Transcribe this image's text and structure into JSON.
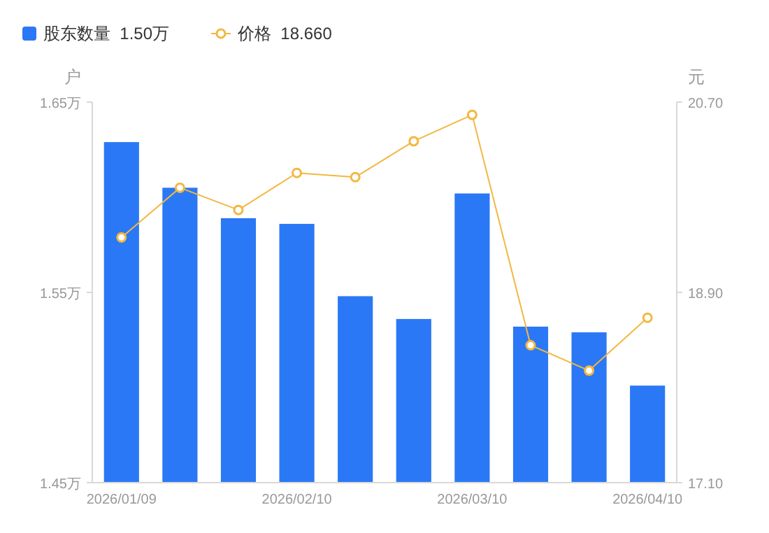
{
  "chart_data": {
    "type": "bar",
    "ylabel": "户",
    "y2label": "元",
    "categories": [
      "2026/01/09",
      null,
      null,
      "2026/02/10",
      null,
      null,
      "2026/03/10",
      null,
      null,
      "2026/04/10"
    ],
    "series": [
      {
        "name": "股东数量  1.50万",
        "color": "#2a78f5",
        "values": [
          1.629,
          1.605,
          1.589,
          1.586,
          1.548,
          1.536,
          1.602,
          1.532,
          1.529,
          1.501
        ]
      },
      {
        "name": "价格  18.660",
        "type": "line",
        "axis": "y2",
        "color": "#f2b842",
        "values": [
          19.42,
          19.89,
          19.68,
          20.03,
          19.99,
          20.33,
          20.58,
          18.4,
          18.16,
          18.66
        ]
      }
    ],
    "ylim": [
      1.45,
      1.65
    ],
    "yticks": [
      {
        "value": 1.45,
        "label": "1.45万"
      },
      {
        "value": 1.55,
        "label": "1.55万"
      },
      {
        "value": 1.65,
        "label": "1.65万"
      }
    ],
    "y2lim": [
      17.1,
      20.7
    ],
    "y2ticks": [
      {
        "value": 17.1,
        "label": "17.10"
      },
      {
        "value": 18.9,
        "label": "18.90"
      },
      {
        "value": 20.7,
        "label": "20.70"
      }
    ],
    "legend": "top left",
    "marker": "circle",
    "grid": false
  }
}
